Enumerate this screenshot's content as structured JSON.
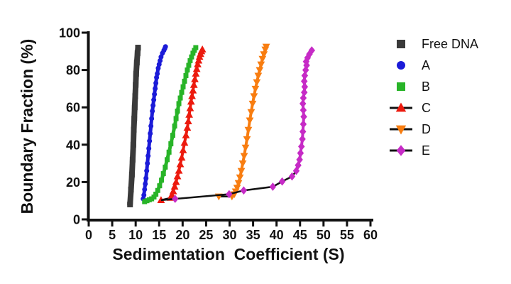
{
  "chart_data": {
    "type": "scatter",
    "title": "",
    "xlabel": "Sedimentation  Coefficient (S)",
    "ylabel": "Boundary Fraction (%)",
    "xlim": [
      0,
      60
    ],
    "ylim": [
      0,
      100
    ],
    "x_ticks": [
      0,
      5,
      10,
      15,
      20,
      25,
      30,
      35,
      40,
      45,
      50,
      55,
      60
    ],
    "y_ticks": [
      0,
      20,
      40,
      60,
      80,
      100
    ],
    "grid": false,
    "legend_position": "right",
    "axis_color": "#111111",
    "connector_color": "#111111",
    "series": [
      {
        "name": "Free DNA",
        "color": "#3a3a3a",
        "marker": "square",
        "marker_size": 8,
        "stroke_width": 8,
        "color_line_from": 0,
        "points": [
          [
            8.8,
            8
          ],
          [
            9.0,
            16
          ],
          [
            9.2,
            24
          ],
          [
            9.35,
            32
          ],
          [
            9.5,
            40
          ],
          [
            9.6,
            48
          ],
          [
            9.7,
            54
          ],
          [
            9.8,
            60
          ],
          [
            9.9,
            66
          ],
          [
            10.0,
            72
          ],
          [
            10.1,
            78
          ],
          [
            10.25,
            84
          ],
          [
            10.4,
            89
          ],
          [
            10.5,
            92
          ]
        ]
      },
      {
        "name": "A",
        "color": "#1b1bd8",
        "marker": "circle",
        "marker_size": 7,
        "stroke_width": 5,
        "color_line_from": 0,
        "points": [
          [
            11.6,
            11
          ],
          [
            11.75,
            13
          ],
          [
            11.9,
            16
          ],
          [
            12.05,
            19
          ],
          [
            12.2,
            22
          ],
          [
            12.35,
            26
          ],
          [
            12.5,
            30
          ],
          [
            12.65,
            34
          ],
          [
            12.8,
            38
          ],
          [
            12.95,
            42
          ],
          [
            13.1,
            46
          ],
          [
            13.25,
            50
          ],
          [
            13.4,
            54
          ],
          [
            13.55,
            58
          ],
          [
            13.7,
            61
          ],
          [
            13.85,
            64
          ],
          [
            14.0,
            67
          ],
          [
            14.15,
            70
          ],
          [
            14.3,
            73
          ],
          [
            14.45,
            76
          ],
          [
            14.6,
            78
          ],
          [
            14.8,
            81
          ],
          [
            15.0,
            83
          ],
          [
            15.2,
            85
          ],
          [
            15.4,
            87
          ],
          [
            15.7,
            89
          ],
          [
            16.0,
            90.5
          ],
          [
            16.2,
            91.5
          ],
          [
            16.35,
            92.5
          ]
        ]
      },
      {
        "name": "B",
        "color": "#28b428",
        "marker": "square",
        "marker_size": 7,
        "stroke_width": 5,
        "color_line_from": 0,
        "points": [
          [
            11.9,
            9.5
          ],
          [
            12.4,
            10
          ],
          [
            12.9,
            10.5
          ],
          [
            13.4,
            11
          ],
          [
            13.9,
            12
          ],
          [
            14.3,
            13.5
          ],
          [
            14.7,
            15.5
          ],
          [
            15.1,
            18
          ],
          [
            15.5,
            21
          ],
          [
            15.9,
            24.5
          ],
          [
            16.3,
            28
          ],
          [
            16.7,
            32
          ],
          [
            17.1,
            36
          ],
          [
            17.5,
            40.5
          ],
          [
            17.9,
            45
          ],
          [
            18.3,
            50
          ],
          [
            18.6,
            54
          ],
          [
            18.9,
            58
          ],
          [
            19.2,
            62
          ],
          [
            19.5,
            65
          ],
          [
            19.8,
            68
          ],
          [
            20.1,
            71
          ],
          [
            20.4,
            74
          ],
          [
            20.7,
            77
          ],
          [
            21.0,
            80
          ],
          [
            21.3,
            82.5
          ],
          [
            21.6,
            85
          ],
          [
            21.9,
            87
          ],
          [
            22.2,
            89
          ],
          [
            22.5,
            90.5
          ],
          [
            22.8,
            92
          ]
        ]
      },
      {
        "name": "C",
        "color": "#ec1a0e",
        "marker": "triangle-up",
        "marker_size": 9,
        "stroke_width": 4,
        "connector": true,
        "color_line_from": 1,
        "points": [
          [
            15.4,
            10.3
          ],
          [
            17.4,
            11.5
          ],
          [
            17.7,
            13
          ],
          [
            18.0,
            15
          ],
          [
            18.3,
            17.5
          ],
          [
            18.6,
            20
          ],
          [
            18.9,
            23
          ],
          [
            19.2,
            26
          ],
          [
            19.5,
            29.5
          ],
          [
            19.8,
            33
          ],
          [
            20.1,
            37
          ],
          [
            20.4,
            41
          ],
          [
            20.7,
            45
          ],
          [
            21.0,
            49
          ],
          [
            21.2,
            52.5
          ],
          [
            21.4,
            56
          ],
          [
            21.6,
            59.5
          ],
          [
            21.8,
            63
          ],
          [
            22.0,
            66
          ],
          [
            22.2,
            69
          ],
          [
            22.4,
            72
          ],
          [
            22.6,
            75
          ],
          [
            22.8,
            78
          ],
          [
            23.0,
            80.5
          ],
          [
            23.2,
            83
          ],
          [
            23.4,
            85
          ],
          [
            23.6,
            87
          ],
          [
            23.8,
            88.5
          ],
          [
            24.0,
            90
          ],
          [
            24.2,
            91
          ]
        ]
      },
      {
        "name": "D",
        "color": "#f87d10",
        "marker": "triangle-down",
        "marker_size": 9,
        "stroke_width": 4,
        "connector": true,
        "color_line_from": 2,
        "points": [
          [
            27.7,
            12.3
          ],
          [
            30.5,
            12.3
          ],
          [
            31.0,
            13.5
          ],
          [
            31.3,
            15
          ],
          [
            31.6,
            17
          ],
          [
            31.9,
            19.5
          ],
          [
            32.2,
            22.5
          ],
          [
            32.5,
            26
          ],
          [
            32.8,
            30
          ],
          [
            33.1,
            34
          ],
          [
            33.4,
            38.5
          ],
          [
            33.7,
            43
          ],
          [
            34.0,
            48
          ],
          [
            34.3,
            53
          ],
          [
            34.6,
            57.5
          ],
          [
            34.9,
            62
          ],
          [
            35.2,
            66
          ],
          [
            35.5,
            70
          ],
          [
            35.8,
            73.5
          ],
          [
            36.1,
            77
          ],
          [
            36.4,
            80
          ],
          [
            36.7,
            83
          ],
          [
            37.0,
            86
          ],
          [
            37.3,
            88.5
          ],
          [
            37.6,
            91
          ],
          [
            37.8,
            92.5
          ]
        ]
      },
      {
        "name": "E",
        "color": "#c62bc6",
        "marker": "diamond",
        "marker_size": 9,
        "stroke_width": 4,
        "connector": true,
        "color_line_from": 6,
        "line_prepend": [
          [
            15.4,
            10.3
          ]
        ],
        "points": [
          [
            18.4,
            11
          ],
          [
            29.9,
            13.5
          ],
          [
            33.0,
            15.5
          ],
          [
            39.2,
            17.5
          ],
          [
            41.2,
            20.3
          ],
          [
            43.3,
            23
          ],
          [
            44.2,
            26
          ],
          [
            44.6,
            29
          ],
          [
            44.9,
            32
          ],
          [
            45.1,
            35.5
          ],
          [
            45.3,
            39
          ],
          [
            45.5,
            43
          ],
          [
            45.6,
            47
          ],
          [
            45.7,
            51
          ],
          [
            45.8,
            55
          ],
          [
            45.7,
            58.5
          ],
          [
            45.6,
            62
          ],
          [
            45.7,
            65
          ],
          [
            45.9,
            68
          ],
          [
            46.0,
            71
          ],
          [
            45.9,
            74
          ],
          [
            46.0,
            77
          ],
          [
            46.2,
            80
          ],
          [
            46.4,
            82.5
          ],
          [
            46.3,
            84.5
          ],
          [
            46.6,
            86.5
          ],
          [
            47.0,
            88.5
          ],
          [
            47.5,
            90.5
          ]
        ]
      }
    ]
  },
  "legend": {
    "line_color": "#111111",
    "items": [
      {
        "label": "Free DNA",
        "marker": "square",
        "color": "#3a3a3a",
        "line": false
      },
      {
        "label": "A",
        "marker": "circle",
        "color": "#1b1bd8",
        "line": false
      },
      {
        "label": "B",
        "marker": "square",
        "color": "#28b428",
        "line": false
      },
      {
        "label": "C",
        "marker": "triangle-up",
        "color": "#ec1a0e",
        "line": true
      },
      {
        "label": "D",
        "marker": "triangle-down",
        "color": "#f87d10",
        "line": true
      },
      {
        "label": "E",
        "marker": "diamond",
        "color": "#c62bc6",
        "line": true
      }
    ]
  }
}
